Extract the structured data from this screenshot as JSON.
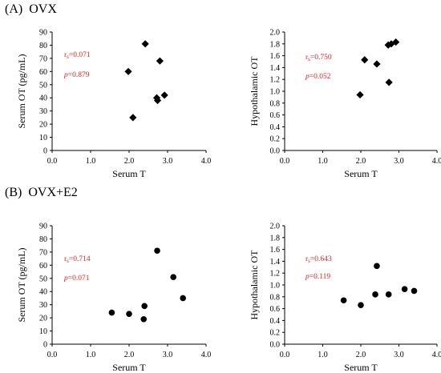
{
  "sections": [
    {
      "label": "(A)  OVX"
    },
    {
      "label": "(B)  OVX+E2"
    }
  ],
  "colors": {
    "marker": "#000000",
    "annotation": "#d62728",
    "axis": "#000000"
  },
  "chart_data": [
    {
      "type": "scatter",
      "marker": "diamond",
      "xlabel": "Serum T",
      "ylabel": "Serum OT (pg/mL)",
      "xlim": [
        0,
        4
      ],
      "ylim": [
        0,
        90
      ],
      "xticks": [
        "0.0",
        "1.0",
        "2.0",
        "3.0",
        "4.0"
      ],
      "yticks": [
        "0",
        "10",
        "20",
        "30",
        "40",
        "50",
        "60",
        "70",
        "80",
        "90"
      ],
      "x": [
        1.98,
        2.1,
        2.42,
        2.72,
        2.74,
        2.8,
        2.92
      ],
      "y": [
        60,
        25,
        81,
        40,
        38,
        68,
        42
      ],
      "stats": {
        "r_prefix": "r",
        "r_sub": "s",
        "r_value": "=0.071",
        "p_prefix": "p",
        "p_value": "=0.879"
      },
      "grid": false
    },
    {
      "type": "scatter",
      "marker": "diamond",
      "xlabel": "Serum T",
      "ylabel": "Hypothalamic OT",
      "xlim": [
        0,
        4
      ],
      "ylim": [
        0,
        2
      ],
      "xticks": [
        "0.0",
        "1.0",
        "2.0",
        "3.0",
        "4.0"
      ],
      "yticks": [
        "0.0",
        "0.2",
        "0.4",
        "0.6",
        "0.8",
        "1.0",
        "1.2",
        "1.4",
        "1.6",
        "1.8",
        "2.0"
      ],
      "x": [
        1.98,
        2.1,
        2.42,
        2.72,
        2.74,
        2.8,
        2.92
      ],
      "y": [
        0.94,
        1.53,
        1.46,
        1.78,
        1.15,
        1.8,
        1.83
      ],
      "stats": {
        "r_prefix": "r",
        "r_sub": "s",
        "r_value": "=0.750",
        "p_prefix": "p",
        "p_value": "=0.052"
      },
      "grid": false
    },
    {
      "type": "scatter",
      "marker": "circle",
      "xlabel": "Serum T",
      "ylabel": "Serum OT (pg/mL)",
      "xlim": [
        0,
        4
      ],
      "ylim": [
        0,
        90
      ],
      "xticks": [
        "0.0",
        "1.0",
        "2.0",
        "3.0",
        "4.0"
      ],
      "yticks": [
        "0",
        "10",
        "20",
        "30",
        "40",
        "50",
        "60",
        "70",
        "80",
        "90"
      ],
      "x": [
        1.55,
        2.0,
        2.38,
        2.4,
        2.73,
        3.15,
        3.4
      ],
      "y": [
        24,
        23,
        19,
        29,
        71,
        51,
        35
      ],
      "stats": {
        "r_prefix": "r",
        "r_sub": "s",
        "r_value": "=0.714",
        "p_prefix": "p",
        "p_value": "=0.071"
      },
      "grid": false
    },
    {
      "type": "scatter",
      "marker": "circle",
      "xlabel": "Serum T",
      "ylabel": "Hypothalamic OT",
      "xlim": [
        0,
        4
      ],
      "ylim": [
        0,
        2
      ],
      "xticks": [
        "0.0",
        "1.0",
        "2.0",
        "3.0",
        "4.0"
      ],
      "yticks": [
        "0.0",
        "0.2",
        "0.4",
        "0.6",
        "0.8",
        "1.0",
        "1.2",
        "1.4",
        "1.6",
        "1.8",
        "2.0"
      ],
      "x": [
        1.55,
        2.0,
        2.38,
        2.42,
        2.73,
        3.15,
        3.4
      ],
      "y": [
        0.74,
        0.66,
        0.84,
        1.32,
        0.84,
        0.93,
        0.9
      ],
      "stats": {
        "r_prefix": "r",
        "r_sub": "s",
        "r_value": "=0.643",
        "p_prefix": "p",
        "p_value": "=0.119"
      },
      "grid": false
    }
  ]
}
